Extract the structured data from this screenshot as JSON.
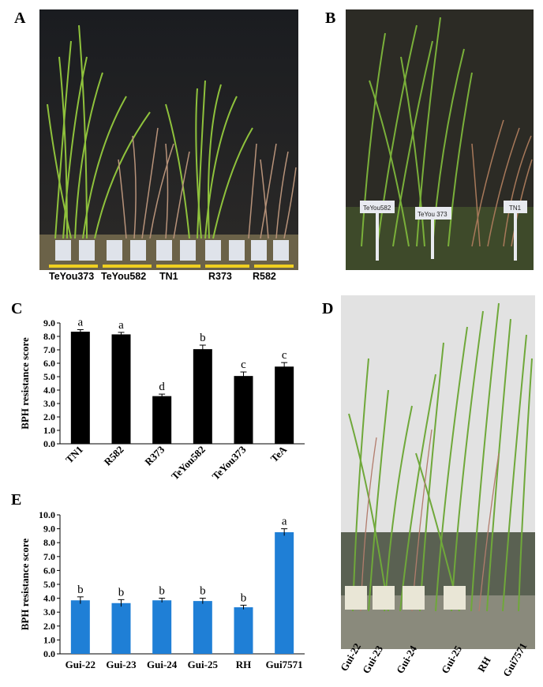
{
  "panels": {
    "A": {
      "letter": "A",
      "labels": [
        "TeYou373",
        "TeYou582",
        "TN1",
        "R373",
        "R582"
      ]
    },
    "B": {
      "letter": "B",
      "tags": [
        "TeYou582",
        "TeYou 373",
        "TN1"
      ]
    },
    "C": {
      "letter": "C"
    },
    "D": {
      "letter": "D",
      "labels": [
        "Gui-22",
        "Gui-23",
        "Gui-24",
        "Gui-25",
        "RH",
        "Gui7571"
      ]
    },
    "E": {
      "letter": "E"
    }
  },
  "chart_data": [
    {
      "id": "C",
      "type": "bar",
      "ylabel": "BPH resistance score",
      "ylim": [
        0,
        9
      ],
      "yticks": [
        "0.0",
        "1.0",
        "2.0",
        "3.0",
        "4.0",
        "5.0",
        "6.0",
        "7.0",
        "8.0",
        "9.0"
      ],
      "categories": [
        "TN1",
        "R582",
        "R373",
        "TeYou582",
        "TeYou373",
        "TeA"
      ],
      "values": [
        8.35,
        8.15,
        3.55,
        7.05,
        5.05,
        5.75
      ],
      "errors": [
        0.15,
        0.15,
        0.15,
        0.3,
        0.3,
        0.3
      ],
      "letters": [
        "a",
        "a",
        "d",
        "b",
        "c",
        "c"
      ],
      "bar_color": "#000000"
    },
    {
      "id": "E",
      "type": "bar",
      "ylabel": "BPH resistance score",
      "ylim": [
        0,
        10
      ],
      "yticks": [
        "0.0",
        "1.0",
        "2.0",
        "3.0",
        "4.0",
        "5.0",
        "6.0",
        "7.0",
        "8.0",
        "9.0",
        "10.0"
      ],
      "categories": [
        "Gui-22",
        "Gui-23",
        "Gui-24",
        "Gui-25",
        "RH",
        "Gui7571"
      ],
      "values": [
        3.85,
        3.65,
        3.85,
        3.8,
        3.35,
        8.75
      ],
      "errors": [
        0.25,
        0.25,
        0.15,
        0.2,
        0.15,
        0.25
      ],
      "letters": [
        "b",
        "b",
        "b",
        "b",
        "b",
        "a"
      ],
      "bar_color": "#1f7fd6"
    }
  ]
}
